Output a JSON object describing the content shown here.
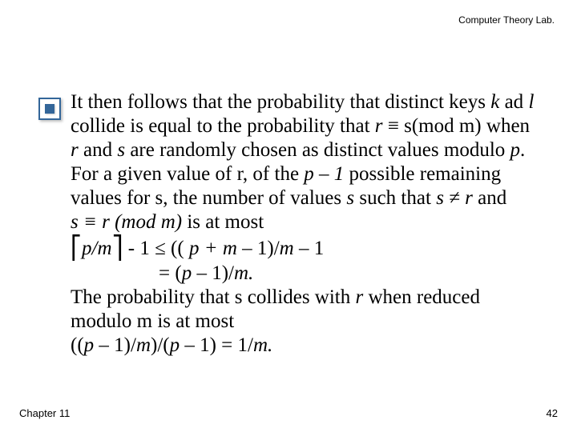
{
  "header": {
    "lab": "Computer Theory Lab."
  },
  "body": {
    "p1a": "It then follows that the probability that distinct keys ",
    "k": "k",
    "p1b": " ad ",
    "l": "l",
    "p1c": " collide is equal to the probability that  ",
    "r1": "r",
    "eq1a": " ≡ s(mod m)",
    "p1d": " when ",
    "r2": "r",
    "p1e": " and ",
    "s1": "s",
    "p1f": " are randomly chosen as distinct values modulo ",
    "pvar": "p",
    "p1g": ". For a given value of ",
    "rlit": "r",
    "p1h": ", of the ",
    "pm1": "p – 1",
    "p1i": " possible remaining values for ",
    "slit": "s",
    "p1j": ", the number of values ",
    "s2": "s",
    "p1k": " such that ",
    "sner": "s ≠ r",
    "p1l": " and ",
    "eq2": "s ≡ r (mod m)",
    "p1m": " is at most",
    "ceilL": "⎡",
    "pm": "p/m",
    "ceilR": "⎤",
    "line_a": " - 1 ≤  (( ",
    "line_a2": "p + m – ",
    "line_a3": "1)/",
    "line_a4": "m – ",
    "line_a5": "1",
    "line_b1": "= (",
    "line_b2": "p – ",
    "line_b3": "1)/",
    "line_b4": "m.",
    "p2a": "The probability that s collides with ",
    "r3": "r",
    "p2b": " when reduced modulo m is at most",
    "final1": "((",
    "final2": "p – ",
    "final3": "1)/",
    "final4": "m",
    "final5": ")/(",
    "final6": "p – ",
    "final7": "1) = 1/",
    "final8": "m."
  },
  "footer": {
    "chapter": "Chapter 11",
    "page": "42"
  },
  "colors": {
    "accent": "#336699",
    "text": "#000000",
    "bg": "#ffffff"
  }
}
